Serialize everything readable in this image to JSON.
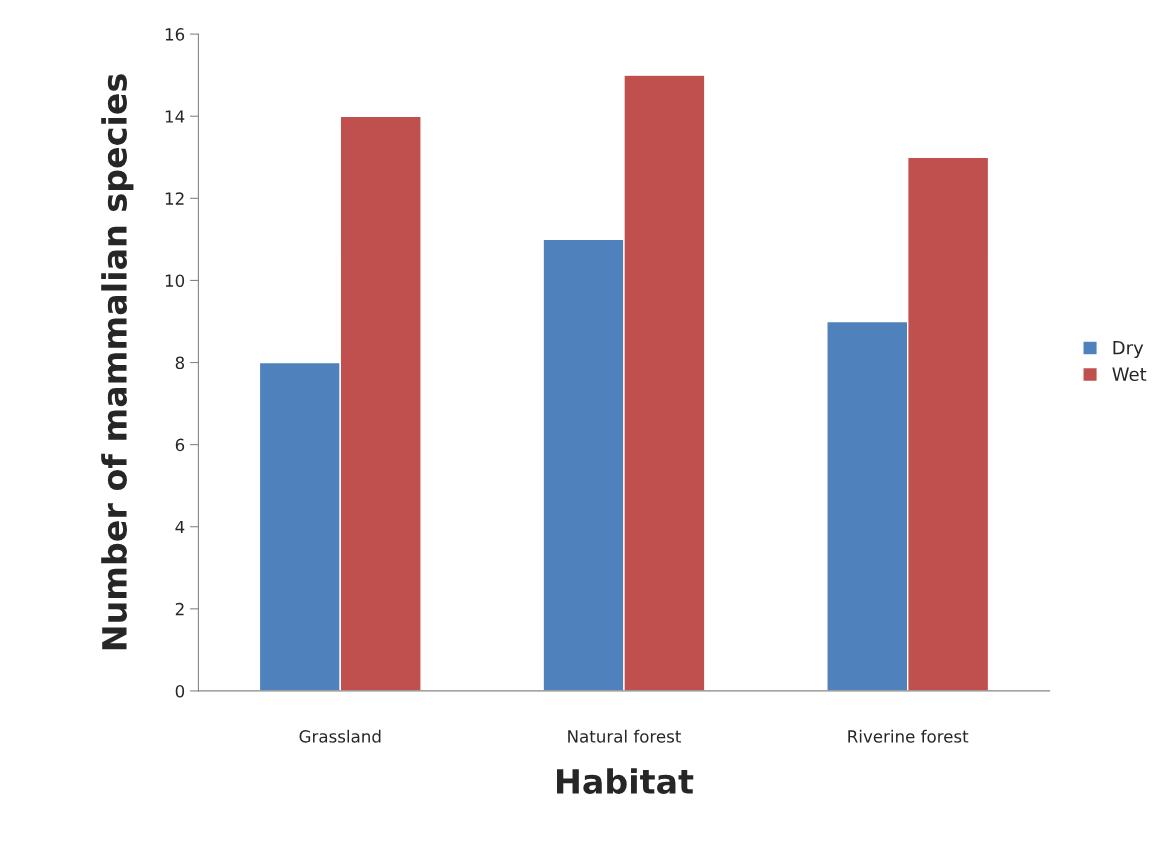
{
  "chart_data": {
    "type": "bar",
    "xlabel": "Habitat",
    "ylabel": "Number of mammalian species",
    "categories": [
      "Grassland",
      "Natural forest",
      "Riverine forest"
    ],
    "series": [
      {
        "name": "Dry",
        "color": "#4f81bd",
        "values": [
          8,
          11,
          9
        ]
      },
      {
        "name": "Wet",
        "color": "#c0504d",
        "values": [
          14,
          15,
          13
        ]
      }
    ],
    "ylim": [
      0,
      16
    ],
    "yticks": [
      0,
      2,
      4,
      6,
      8,
      10,
      12,
      14,
      16
    ],
    "grid": false,
    "legend": "right"
  }
}
